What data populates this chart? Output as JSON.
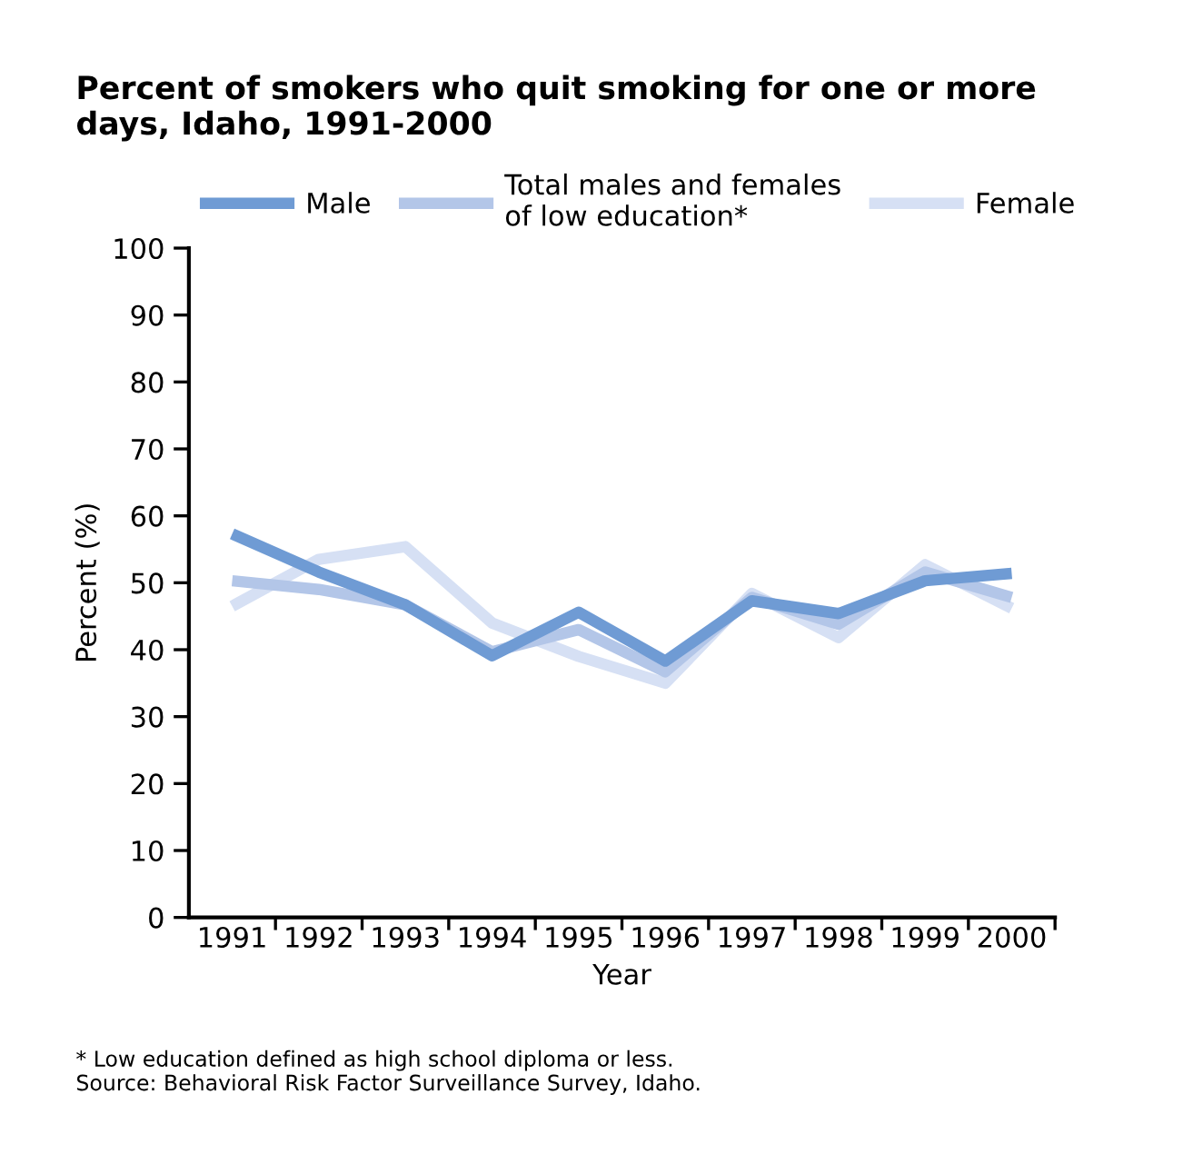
{
  "chart_data": {
    "type": "line",
    "title": "Percent of smokers who quit smoking for one or more\ndays, Idaho, 1991-2000",
    "xlabel": "Year",
    "ylabel": "Percent (%)",
    "categories": [
      "1991",
      "1992",
      "1993",
      "1994",
      "1995",
      "1996",
      "1997",
      "1998",
      "1999",
      "2000"
    ],
    "series": [
      {
        "name": "Female",
        "color": "#d6e0f4",
        "values": [
          46.5,
          53.5,
          55.4,
          44,
          39,
          35,
          48.4,
          41.8,
          52.7,
          46.2
        ]
      },
      {
        "name": "Total males and females\nof low education*",
        "color": "#b3c6e8",
        "values": [
          50.3,
          49,
          46.7,
          39.7,
          43,
          36.7,
          47.8,
          43.8,
          51.6,
          47.8
        ]
      },
      {
        "name": "Male",
        "color": "#6f9bd4",
        "values": [
          57.3,
          51.6,
          46.7,
          39.1,
          45.6,
          38.3,
          47.3,
          45.4,
          50.3,
          51.4
        ]
      }
    ],
    "ylim": [
      0,
      100
    ],
    "yticks": [
      0,
      10,
      20,
      30,
      40,
      50,
      60,
      70,
      80,
      90,
      100
    ],
    "grid": false,
    "legend": "top",
    "marker": "none",
    "line_style": "solid",
    "annotations": [
      "* Low education defined as high school diploma or less.\nSource: Behavioral Risk Factor Surveillance Survey, Idaho."
    ]
  }
}
